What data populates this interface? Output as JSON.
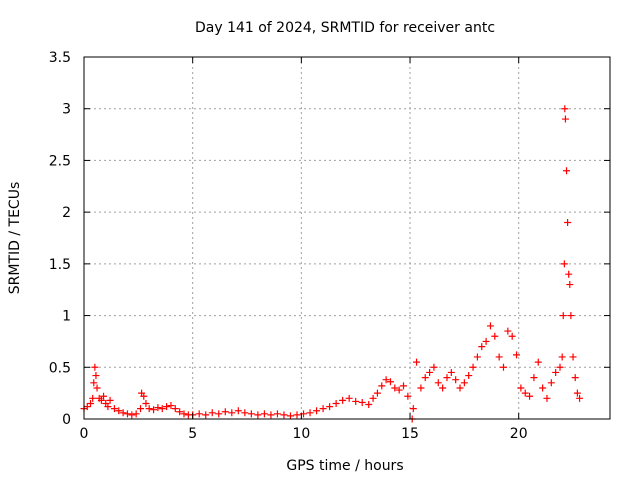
{
  "chart_data": {
    "type": "scatter",
    "title": "Day 141 of 2024, SRMTID for receiver antc",
    "xlabel": "GPS time / hours",
    "ylabel": "SRMTID / TECUs",
    "xlim": [
      0,
      24.2
    ],
    "ylim": [
      0,
      3.5
    ],
    "x_ticks": [
      0,
      5,
      10,
      15,
      20
    ],
    "x_tick_labels": [
      "0",
      "5",
      "10",
      "15",
      "20"
    ],
    "y_ticks": [
      0,
      0.5,
      1,
      1.5,
      2,
      2.5,
      3,
      3.5
    ],
    "y_tick_labels": [
      "0",
      "0.5",
      "1",
      "1.5",
      "2",
      "2.5",
      "3",
      "3.5"
    ],
    "grid": true,
    "marker": "+",
    "color": "#ff0000",
    "series": [
      {
        "name": "SRMTID",
        "x": [
          0.0,
          0.15,
          0.3,
          0.4,
          0.45,
          0.5,
          0.55,
          0.6,
          0.7,
          0.8,
          0.9,
          1.0,
          1.1,
          1.2,
          1.4,
          1.6,
          1.8,
          2.0,
          2.2,
          2.4,
          2.6,
          2.65,
          2.75,
          2.85,
          3.0,
          3.2,
          3.4,
          3.6,
          3.8,
          4.0,
          4.2,
          4.4,
          4.6,
          4.8,
          5.0,
          5.3,
          5.6,
          5.9,
          6.2,
          6.5,
          6.8,
          7.1,
          7.4,
          7.7,
          8.0,
          8.3,
          8.6,
          8.9,
          9.2,
          9.5,
          9.8,
          10.1,
          10.4,
          10.7,
          11.0,
          11.3,
          11.6,
          11.9,
          12.2,
          12.5,
          12.8,
          13.1,
          13.3,
          13.5,
          13.7,
          13.9,
          14.1,
          14.3,
          14.5,
          14.7,
          14.9,
          15.1,
          15.15,
          15.3,
          15.5,
          15.7,
          15.9,
          16.1,
          16.3,
          16.5,
          16.7,
          16.9,
          17.1,
          17.3,
          17.5,
          17.7,
          17.9,
          18.1,
          18.3,
          18.5,
          18.7,
          18.9,
          19.1,
          19.3,
          19.5,
          19.7,
          19.9,
          20.1,
          20.3,
          20.5,
          20.7,
          20.9,
          21.1,
          21.3,
          21.5,
          21.7,
          21.9,
          22.0,
          22.05,
          22.1,
          22.12,
          22.15,
          22.2,
          22.25,
          22.3,
          22.35,
          22.4,
          22.5,
          22.6,
          22.7,
          22.8
        ],
        "y": [
          0.1,
          0.12,
          0.15,
          0.2,
          0.35,
          0.5,
          0.42,
          0.3,
          0.2,
          0.18,
          0.22,
          0.15,
          0.12,
          0.18,
          0.1,
          0.08,
          0.06,
          0.05,
          0.04,
          0.05,
          0.1,
          0.25,
          0.22,
          0.15,
          0.1,
          0.09,
          0.11,
          0.1,
          0.12,
          0.13,
          0.1,
          0.07,
          0.05,
          0.04,
          0.04,
          0.05,
          0.04,
          0.06,
          0.05,
          0.07,
          0.06,
          0.08,
          0.06,
          0.05,
          0.04,
          0.05,
          0.04,
          0.05,
          0.04,
          0.03,
          0.04,
          0.05,
          0.06,
          0.08,
          0.1,
          0.12,
          0.15,
          0.18,
          0.2,
          0.17,
          0.16,
          0.14,
          0.2,
          0.25,
          0.32,
          0.38,
          0.36,
          0.3,
          0.28,
          0.32,
          0.22,
          0.0,
          0.1,
          0.55,
          0.3,
          0.4,
          0.45,
          0.5,
          0.35,
          0.3,
          0.4,
          0.45,
          0.38,
          0.3,
          0.35,
          0.42,
          0.5,
          0.6,
          0.7,
          0.75,
          0.9,
          0.8,
          0.6,
          0.5,
          0.85,
          0.8,
          0.62,
          0.3,
          0.25,
          0.22,
          0.4,
          0.55,
          0.3,
          0.2,
          0.35,
          0.45,
          0.5,
          0.6,
          1.0,
          1.5,
          3.0,
          2.9,
          2.4,
          1.9,
          1.4,
          1.3,
          1.0,
          0.6,
          0.4,
          0.25,
          0.2
        ]
      }
    ]
  }
}
